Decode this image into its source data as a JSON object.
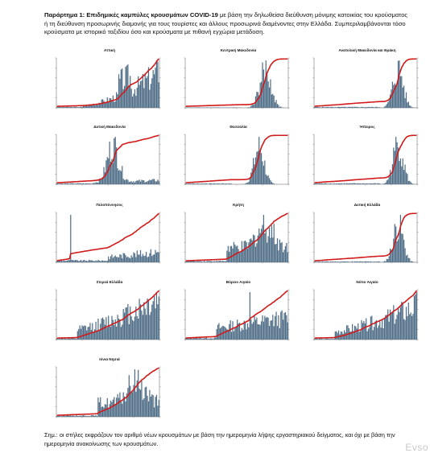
{
  "header": {
    "lead": "Παράρτημα 1: Επιδημικές καμπύλες κρουσμάτων COVID-19",
    "text": " με βάση την δηλωθείσα διεύθυνση μόνιμης κατοικίας του κρούσματος ή τη διεύθυνση προσωρινής διαμονής για τους τουρίστες και άλλους προσωρινά διαμένοντες στην Ελλάδα. Συμπεριλαμβάνονται τόσο κρούσματα με ιστορικό ταξιδίου όσο και κρούσματα με πιθανή εγχώρια μετάδοση."
  },
  "footnote": "Σημ.: οι στήλες εκφράζουν τον αριθμό νέων κρουσμάτων με βάση την ημερομηνία λήψης εργαστηριακού δείγματος, και όχι με βάση την ημερομηνία ανακοίνωσης των κρουσμάτων.",
  "watermark": "Evso",
  "colors": {
    "bars": "#4f6d87",
    "cumulative_line": "#d11a1a",
    "axis": "#333333"
  },
  "chart_data": [
    {
      "type": "bar",
      "region": "Αττική",
      "shape": "attica",
      "series": [
        {
          "values_kind": "daily_bars"
        },
        {
          "values_kind": "cumulative_line"
        }
      ]
    },
    {
      "type": "bar",
      "region": "Κεντρική Μακεδονία",
      "shape": "macedonia"
    },
    {
      "type": "bar",
      "region": "Ανατολική Μακεδονία και Θράκη",
      "shape": "late"
    },
    {
      "type": "bar",
      "region": "Δυτική Μακεδονία",
      "shape": "early_peak"
    },
    {
      "type": "bar",
      "region": "Θεσσαλία",
      "shape": "mid_peak"
    },
    {
      "type": "bar",
      "region": "Ήπειρος",
      "shape": "late"
    },
    {
      "type": "bar",
      "region": "Πελοπόννησος",
      "shape": "spike"
    },
    {
      "type": "bar",
      "region": "Κρήτη",
      "shape": "summer"
    },
    {
      "type": "bar",
      "region": "Δυτική Ελλάδα",
      "shape": "late"
    },
    {
      "type": "bar",
      "region": "Στερεά Ελλάδα",
      "shape": "steady"
    },
    {
      "type": "bar",
      "region": "Βόρειο Αιγαίο",
      "shape": "spike_mid"
    },
    {
      "type": "bar",
      "region": "Νότιο Αιγαίο",
      "shape": "steady"
    },
    {
      "type": "bar",
      "region": "Ιόνια Νησιά",
      "shape": "summer"
    }
  ]
}
